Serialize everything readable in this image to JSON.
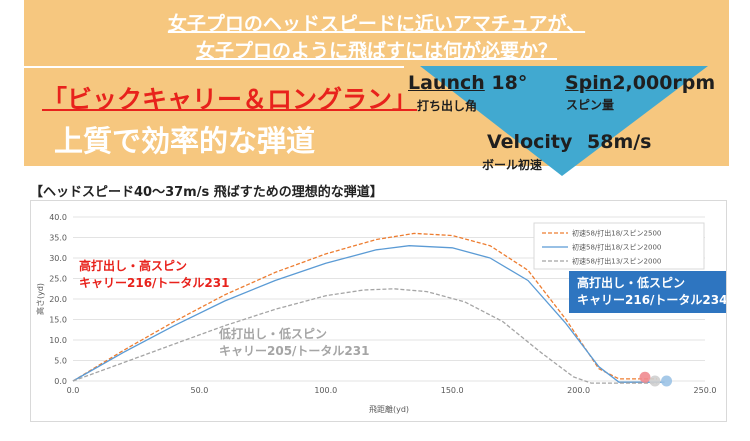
{
  "banner": {
    "headline_line1": "女子プロのヘッドスピードに近いアマチュアが、",
    "headline_line2": "女子プロのように飛ばすには何が必要か？",
    "tagline_red": "「ビックキャリー＆ロングラン」",
    "tagline_white": "上質で効率的な弾道",
    "background_color": "#f6c77f",
    "triangle_color": "#41a9d0"
  },
  "metrics": {
    "launch_label": "Launch",
    "launch_value": "18°",
    "launch_caption": "打ち出し角",
    "spin_label": "Spin",
    "spin_value": "2,000rpm",
    "spin_caption": "スピン量",
    "velocity_label": "Velocity",
    "velocity_value": "58m/s",
    "velocity_caption": "ボール初速"
  },
  "chart_heading": "【ヘッドスピード40〜37m/s 飛ばすための理想的な弾道】",
  "chart_data": {
    "type": "line",
    "xlabel": "飛距離(yd)",
    "ylabel": "高さ(yd)",
    "xlim": [
      0,
      250
    ],
    "ylim": [
      0,
      40
    ],
    "x_ticks": [
      "0.0",
      "50.0",
      "100.0",
      "150.0",
      "200.0",
      "250.0"
    ],
    "y_ticks": [
      "0.0",
      "5.0",
      "10.0",
      "15.0",
      "20.0",
      "25.0",
      "30.0",
      "35.0",
      "40.0"
    ],
    "grid": "horizontal",
    "legend_position": "top-right",
    "series": [
      {
        "name": "初速58/打出18/スピン2500",
        "color": "#ed7d31",
        "dash": true,
        "points": [
          [
            0,
            0
          ],
          [
            20,
            7.5
          ],
          [
            40,
            14.5
          ],
          [
            60,
            21
          ],
          [
            80,
            26.5
          ],
          [
            100,
            31
          ],
          [
            120,
            34.5
          ],
          [
            135,
            36
          ],
          [
            150,
            35.5
          ],
          [
            165,
            33
          ],
          [
            180,
            27
          ],
          [
            195,
            15
          ],
          [
            208,
            3
          ],
          [
            216,
            0.5
          ],
          [
            231,
            0.5
          ]
        ]
      },
      {
        "name": "初速58/打出18/スピン2000",
        "color": "#5b9bd5",
        "dash": false,
        "points": [
          [
            0,
            0
          ],
          [
            20,
            7
          ],
          [
            40,
            13.5
          ],
          [
            60,
            19.5
          ],
          [
            80,
            24.5
          ],
          [
            100,
            28.7
          ],
          [
            120,
            32
          ],
          [
            133,
            33
          ],
          [
            150,
            32.5
          ],
          [
            165,
            30
          ],
          [
            180,
            24.5
          ],
          [
            195,
            14
          ],
          [
            208,
            3.5
          ],
          [
            216,
            -0.3
          ],
          [
            234,
            -0.3
          ]
        ]
      },
      {
        "name": "初速58/打出13/スピン2000",
        "color": "#a5a5a5",
        "dash": true,
        "points": [
          [
            0,
            0
          ],
          [
            20,
            4.5
          ],
          [
            40,
            9
          ],
          [
            60,
            13.5
          ],
          [
            80,
            17.5
          ],
          [
            100,
            20.8
          ],
          [
            115,
            22.2
          ],
          [
            127,
            22.5
          ],
          [
            140,
            21.8
          ],
          [
            155,
            19.3
          ],
          [
            170,
            14.5
          ],
          [
            185,
            7
          ],
          [
            198,
            1
          ],
          [
            205,
            -0.5
          ],
          [
            231,
            -0.5
          ]
        ]
      }
    ],
    "annotations": [
      {
        "line1": "高打出し・高スピン",
        "line2": "キャリー216/トータル231",
        "color": "#e8221c"
      },
      {
        "line1": "高打出し・低スピン",
        "line2": "キャリー216/トータル234",
        "color": "#ffffff"
      },
      {
        "line1": "低打出し・低スピン",
        "line2": "キャリー205/トータル231",
        "color": "#a5a5a5"
      }
    ]
  }
}
